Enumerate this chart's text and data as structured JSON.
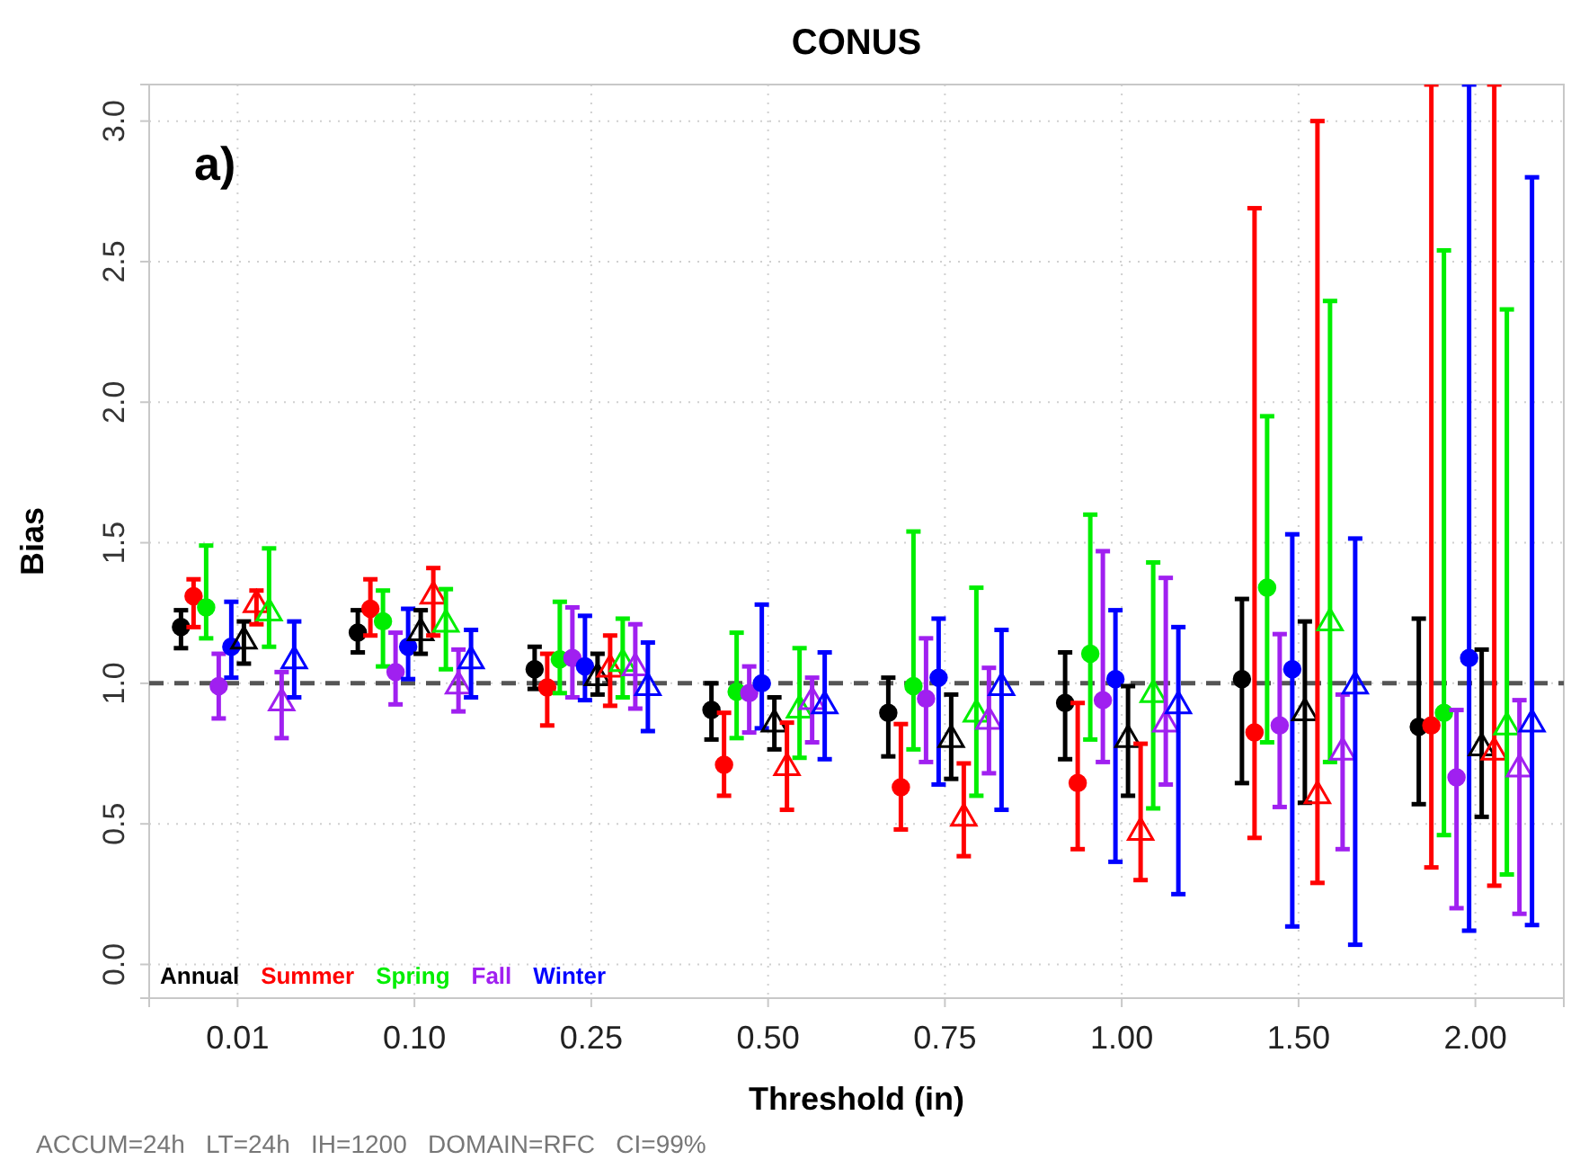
{
  "chart_data": {
    "type": "scatter",
    "title": "CONUS",
    "xlabel": "Threshold (in)",
    "ylabel": "Bias",
    "annotations": [
      "a)",
      "ACCUM=24h   LT=24h   IH=1200   DOMAIN=RFC   CI=99%"
    ],
    "categories": [
      "0.01",
      "0.10",
      "0.25",
      "0.50",
      "0.75",
      "1.00",
      "1.50",
      "2.00"
    ],
    "ylim": [
      -0.12,
      3.13
    ],
    "yticks": [
      {
        "value": 0,
        "label": "0.0"
      },
      0.5,
      {
        "value": 1,
        "label": "1.0"
      },
      1.5,
      {
        "value": 2,
        "label": "2.0"
      },
      2.5,
      {
        "value": 3,
        "label": "3.0"
      }
    ],
    "grid": true,
    "legend": "bottom left",
    "ref_lines": [
      {
        "axis": "y",
        "value": 1,
        "label": null,
        "color": "#555555",
        "line_style": "dashed"
      }
    ],
    "series": [
      {
        "name": "Annual",
        "color": "#000000",
        "marker": "circle",
        "values": [
          1.2,
          1.18,
          1.05,
          0.905,
          0.895,
          0.93,
          1.015,
          0.845
        ],
        "errors": [
          [
            1.125,
            1.26
          ],
          [
            1.11,
            1.26
          ],
          [
            0.98,
            1.13
          ],
          [
            0.8,
            1.0
          ],
          [
            0.74,
            1.02
          ],
          [
            0.73,
            1.11
          ],
          [
            0.645,
            1.3
          ],
          [
            0.57,
            1.23
          ]
        ]
      },
      {
        "name": "Summer",
        "color": "#ff0000",
        "marker": "circle",
        "values": [
          1.31,
          1.265,
          0.985,
          0.71,
          0.63,
          0.645,
          0.825,
          0.85
        ],
        "errors": [
          [
            1.2,
            1.37
          ],
          [
            1.17,
            1.37
          ],
          [
            0.85,
            1.105
          ],
          [
            0.6,
            0.895
          ],
          [
            0.48,
            0.855
          ],
          [
            0.41,
            0.93
          ],
          [
            0.45,
            2.69
          ],
          [
            0.345,
            3.13
          ]
        ]
      },
      {
        "name": "Spring",
        "color": "#00ee00",
        "marker": "circle",
        "values": [
          1.27,
          1.22,
          1.085,
          0.97,
          0.99,
          1.105,
          1.34,
          0.895
        ],
        "errors": [
          [
            1.16,
            1.49
          ],
          [
            1.06,
            1.33
          ],
          [
            0.965,
            1.29
          ],
          [
            0.805,
            1.18
          ],
          [
            0.765,
            1.54
          ],
          [
            0.8,
            1.6
          ],
          [
            0.79,
            1.95
          ],
          [
            0.46,
            2.54
          ]
        ]
      },
      {
        "name": "Fall",
        "color": "#a020f0",
        "marker": "circle",
        "values": [
          0.99,
          1.04,
          1.09,
          0.965,
          0.945,
          0.94,
          0.85,
          0.665
        ],
        "errors": [
          [
            0.875,
            1.105
          ],
          [
            0.925,
            1.18
          ],
          [
            0.95,
            1.27
          ],
          [
            0.825,
            1.06
          ],
          [
            0.72,
            1.16
          ],
          [
            0.72,
            1.47
          ],
          [
            0.56,
            1.175
          ],
          [
            0.2,
            0.905
          ]
        ]
      },
      {
        "name": "Winter",
        "color": "#0000ff",
        "marker": "circle",
        "values": [
          1.13,
          1.13,
          1.06,
          1.0,
          1.02,
          1.015,
          1.05,
          1.09
        ],
        "errors": [
          [
            1.02,
            1.29
          ],
          [
            1.015,
            1.265
          ],
          [
            0.94,
            1.24
          ],
          [
            0.84,
            1.28
          ],
          [
            0.64,
            1.23
          ],
          [
            0.365,
            1.26
          ],
          [
            0.135,
            1.53
          ],
          [
            0.12,
            3.13
          ]
        ]
      },
      {
        "color": "#000000",
        "marker": "triangle",
        "values": [
          1.15,
          1.18,
          1.02,
          0.855,
          0.8,
          0.8,
          0.895,
          0.77
        ],
        "errors": [
          [
            1.07,
            1.22
          ],
          [
            1.105,
            1.26
          ],
          [
            0.96,
            1.105
          ],
          [
            0.765,
            0.95
          ],
          [
            0.66,
            0.96
          ],
          [
            0.6,
            0.99
          ],
          [
            0.575,
            1.22
          ],
          [
            0.525,
            1.12
          ]
        ]
      },
      {
        "color": "#ff0000",
        "marker": "triangle",
        "values": [
          1.28,
          1.31,
          1.05,
          0.7,
          0.52,
          0.47,
          0.6,
          0.755
        ],
        "errors": [
          [
            1.21,
            1.33
          ],
          [
            1.17,
            1.41
          ],
          [
            0.92,
            1.17
          ],
          [
            0.55,
            0.86
          ],
          [
            0.385,
            0.715
          ],
          [
            0.3,
            0.785
          ],
          [
            0.29,
            3.0
          ],
          [
            0.28,
            3.13
          ]
        ]
      },
      {
        "color": "#00ee00",
        "marker": "triangle",
        "values": [
          1.25,
          1.21,
          1.07,
          0.905,
          0.89,
          0.96,
          1.215,
          0.845
        ],
        "errors": [
          [
            1.13,
            1.48
          ],
          [
            1.05,
            1.335
          ],
          [
            0.95,
            1.23
          ],
          [
            0.735,
            1.125
          ],
          [
            0.6,
            1.34
          ],
          [
            0.555,
            1.43
          ],
          [
            0.72,
            2.36
          ],
          [
            0.32,
            2.33
          ]
        ]
      },
      {
        "color": "#a020f0",
        "marker": "triangle",
        "values": [
          0.93,
          0.99,
          1.055,
          0.935,
          0.865,
          0.855,
          0.755,
          0.695
        ],
        "errors": [
          [
            0.805,
            1.04
          ],
          [
            0.9,
            1.12
          ],
          [
            0.91,
            1.21
          ],
          [
            0.79,
            1.02
          ],
          [
            0.68,
            1.055
          ],
          [
            0.64,
            1.375
          ],
          [
            0.41,
            0.96
          ],
          [
            0.18,
            0.94
          ]
        ]
      },
      {
        "color": "#0000ff",
        "marker": "triangle",
        "values": [
          1.08,
          1.08,
          0.985,
          0.92,
          0.985,
          0.92,
          0.99,
          0.855
        ],
        "errors": [
          [
            0.95,
            1.22
          ],
          [
            0.95,
            1.19
          ],
          [
            0.83,
            1.145
          ],
          [
            0.73,
            1.11
          ],
          [
            0.55,
            1.19
          ],
          [
            0.25,
            1.2
          ],
          [
            0.07,
            1.515
          ],
          [
            0.14,
            2.8
          ]
        ]
      }
    ]
  }
}
